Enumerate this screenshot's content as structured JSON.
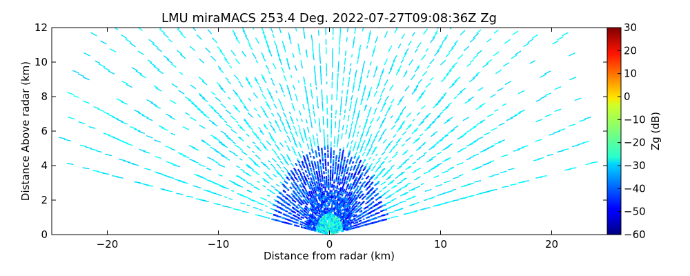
{
  "chart_data": {
    "type": "heatmap",
    "title": "LMU miraMACS 253.4 Deg. 2022-07-27T09:08:36Z  Zg",
    "xlabel": "Distance from radar (km)",
    "ylabel": "Distance Above radar  (km)",
    "xlim": [
      -25,
      25
    ],
    "ylim": [
      0,
      12
    ],
    "x_ticks": [
      -20,
      -10,
      0,
      10,
      20
    ],
    "x_tick_labels": [
      "−20",
      "−10",
      "0",
      "10",
      "20"
    ],
    "y_ticks": [
      0,
      2,
      4,
      6,
      8,
      10,
      12
    ],
    "y_tick_labels": [
      "0",
      "2",
      "4",
      "6",
      "8",
      "10",
      "12"
    ],
    "colorbar": {
      "label": "Zg (dB)",
      "range": [
        -60,
        30
      ],
      "colormap": "jet",
      "ticks": [
        30,
        20,
        10,
        0,
        -10,
        -20,
        -30,
        -40,
        -50,
        -60
      ],
      "tick_labels": [
        "30",
        "20",
        "10",
        "0",
        "−10",
        "−20",
        "−30",
        "−40",
        "−50",
        "−60"
      ]
    },
    "rhi_scan": {
      "elevation_range_deg": [
        10,
        170
      ],
      "max_range_km": 24.5,
      "typical_reflectivity_dB": -28,
      "near_radar_reflectivity_dB": -42
    }
  }
}
